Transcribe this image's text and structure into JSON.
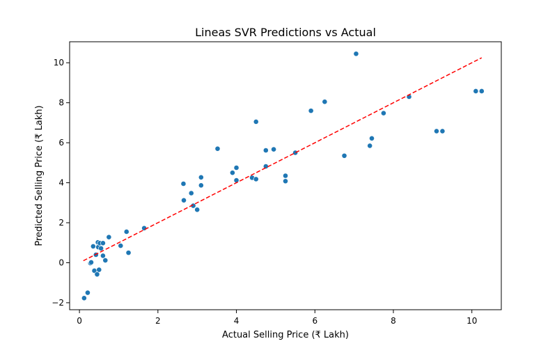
{
  "chart_data": {
    "type": "scatter",
    "title": "Lineas SVR Predictions vs Actual",
    "xlabel": "Actual Selling Price (₹ Lakh)",
    "ylabel": "Predicted Selling Price (₹ Lakh)",
    "xlim": [
      -0.25,
      10.75
    ],
    "ylim": [
      -2.35,
      11.05
    ],
    "x_ticks": [
      0,
      2,
      4,
      6,
      8,
      10
    ],
    "y_ticks": [
      -2,
      0,
      2,
      4,
      6,
      8,
      10
    ],
    "x_tick_labels": [
      "0",
      "2",
      "4",
      "6",
      "8",
      "10"
    ],
    "y_tick_labels": [
      "−2",
      "0",
      "2",
      "4",
      "6",
      "8",
      "10"
    ],
    "grid": false,
    "point_color": "#1f77b4",
    "reference_line": {
      "from": [
        0.1,
        0.1
      ],
      "to": [
        10.25,
        10.25
      ],
      "color": "#ff0000",
      "style": "dashed"
    },
    "points": [
      {
        "x": 0.12,
        "y": -1.77
      },
      {
        "x": 0.21,
        "y": -1.5
      },
      {
        "x": 0.28,
        "y": -0.02
      },
      {
        "x": 0.3,
        "y": 0.02
      },
      {
        "x": 0.35,
        "y": 0.82
      },
      {
        "x": 0.38,
        "y": -0.4
      },
      {
        "x": 0.42,
        "y": 0.4
      },
      {
        "x": 0.45,
        "y": -0.58
      },
      {
        "x": 0.47,
        "y": 1.02
      },
      {
        "x": 0.48,
        "y": 0.78
      },
      {
        "x": 0.5,
        "y": -0.35
      },
      {
        "x": 0.52,
        "y": 0.98
      },
      {
        "x": 0.55,
        "y": 0.72
      },
      {
        "x": 0.6,
        "y": 0.98
      },
      {
        "x": 0.6,
        "y": 0.35
      },
      {
        "x": 0.66,
        "y": 0.12
      },
      {
        "x": 0.75,
        "y": 1.28
      },
      {
        "x": 1.05,
        "y": 0.85
      },
      {
        "x": 1.2,
        "y": 1.55
      },
      {
        "x": 1.25,
        "y": 0.5
      },
      {
        "x": 1.65,
        "y": 1.73
      },
      {
        "x": 2.65,
        "y": 3.95
      },
      {
        "x": 2.66,
        "y": 3.12
      },
      {
        "x": 2.85,
        "y": 3.48
      },
      {
        "x": 2.9,
        "y": 2.85
      },
      {
        "x": 3.0,
        "y": 2.65
      },
      {
        "x": 3.1,
        "y": 4.27
      },
      {
        "x": 3.1,
        "y": 3.87
      },
      {
        "x": 3.52,
        "y": 5.7
      },
      {
        "x": 3.9,
        "y": 4.5
      },
      {
        "x": 4.0,
        "y": 4.75
      },
      {
        "x": 4.0,
        "y": 4.12
      },
      {
        "x": 4.4,
        "y": 4.25
      },
      {
        "x": 4.5,
        "y": 7.05
      },
      {
        "x": 4.5,
        "y": 4.18
      },
      {
        "x": 4.75,
        "y": 5.62
      },
      {
        "x": 4.75,
        "y": 4.82
      },
      {
        "x": 4.95,
        "y": 5.67
      },
      {
        "x": 5.25,
        "y": 4.35
      },
      {
        "x": 5.25,
        "y": 4.08
      },
      {
        "x": 5.5,
        "y": 5.5
      },
      {
        "x": 5.9,
        "y": 7.6
      },
      {
        "x": 6.25,
        "y": 8.05
      },
      {
        "x": 6.75,
        "y": 5.35
      },
      {
        "x": 7.05,
        "y": 10.45
      },
      {
        "x": 7.4,
        "y": 5.85
      },
      {
        "x": 7.45,
        "y": 6.22
      },
      {
        "x": 7.75,
        "y": 7.48
      },
      {
        "x": 8.4,
        "y": 8.3
      },
      {
        "x": 9.1,
        "y": 6.58
      },
      {
        "x": 9.25,
        "y": 6.58
      },
      {
        "x": 10.1,
        "y": 8.58
      },
      {
        "x": 10.25,
        "y": 8.58
      }
    ]
  }
}
